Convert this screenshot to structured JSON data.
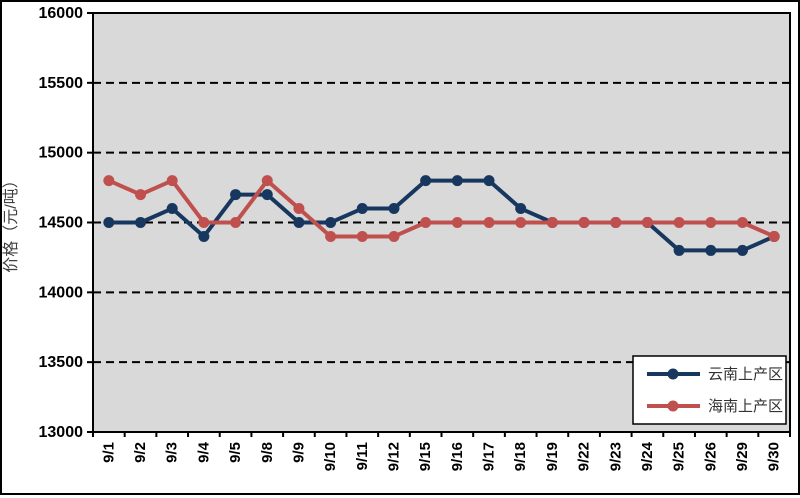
{
  "chart_data": {
    "type": "line",
    "title": "",
    "xlabel": "",
    "ylabel": "价格（元/吨）",
    "ylim": [
      13000,
      16000
    ],
    "ytick_step": 500,
    "grid": "horizontal-dashed",
    "legend_position": "bottom-right-inside",
    "categories": [
      "9/1",
      "9/2",
      "9/3",
      "9/4",
      "9/5",
      "9/8",
      "9/9",
      "9/10",
      "9/11",
      "9/12",
      "9/15",
      "9/16",
      "9/17",
      "9/18",
      "9/19",
      "9/22",
      "9/23",
      "9/24",
      "9/25",
      "9/26",
      "9/29",
      "9/30"
    ],
    "series": [
      {
        "name": "云南上产区",
        "color": "#17375E",
        "marker": "circle",
        "values": [
          14500,
          14500,
          14600,
          14400,
          14700,
          14700,
          14500,
          14500,
          14600,
          14600,
          14800,
          14800,
          14800,
          14600,
          14500,
          14500,
          14500,
          14500,
          14300,
          14300,
          14300,
          14400
        ]
      },
      {
        "name": "海南上产区",
        "color": "#C0504D",
        "marker": "circle",
        "values": [
          14800,
          14700,
          14800,
          14500,
          14500,
          14800,
          14600,
          14400,
          14400,
          14400,
          14500,
          14500,
          14500,
          14500,
          14500,
          14500,
          14500,
          14500,
          14500,
          14500,
          14500,
          14400
        ]
      }
    ]
  },
  "colors": {
    "plot_bg": "#D9D9D9",
    "plot_border": "#000000",
    "gridline": "#000000",
    "tick_text": "#000000",
    "axis_title_text": "#3F3F3F",
    "legend_bg": "#FFFFFF",
    "legend_border": "#000000",
    "legend_text": "#333333",
    "outer_border": "#000000"
  }
}
